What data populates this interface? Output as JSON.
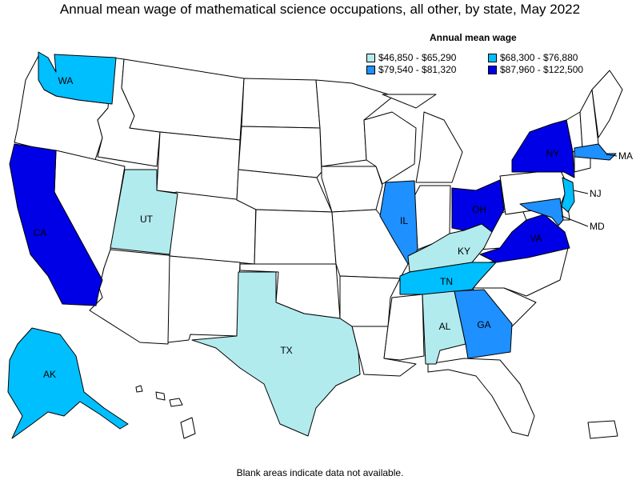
{
  "title": "Annual mean wage of mathematical science occupations, all other, by state, May 2022",
  "footnote": "Blank areas indicate data not available.",
  "legend": {
    "title": "Annual mean wage",
    "items": [
      {
        "label": "$46,850 - $65,290",
        "color": "#b2ebee"
      },
      {
        "label": "$68,300 - $76,880",
        "color": "#00bfff"
      },
      {
        "label": "$79,540 - $81,320",
        "color": "#1e90ff"
      },
      {
        "label": "$87,960 - $122,500",
        "color": "#0000e6"
      }
    ]
  },
  "colors": {
    "blank": "#ffffff"
  },
  "states": {
    "WA": {
      "label": "WA",
      "tier": 1
    },
    "CA": {
      "label": "CA",
      "tier": 3
    },
    "UT": {
      "label": "UT",
      "tier": 0
    },
    "TX": {
      "label": "TX",
      "tier": 0
    },
    "IL": {
      "label": "IL",
      "tier": 2
    },
    "OH": {
      "label": "OH",
      "tier": 3
    },
    "KY": {
      "label": "KY",
      "tier": 0
    },
    "TN": {
      "label": "TN",
      "tier": 1
    },
    "AL": {
      "label": "AL",
      "tier": 0
    },
    "GA": {
      "label": "GA",
      "tier": 2
    },
    "VA": {
      "label": "VA",
      "tier": 3
    },
    "NY": {
      "label": "NY",
      "tier": 3
    },
    "MA": {
      "label": "MA",
      "tier": 2
    },
    "NJ": {
      "label": "NJ",
      "tier": 1
    },
    "MD": {
      "label": "MD",
      "tier": 2
    },
    "AK": {
      "label": "AK",
      "tier": 1
    }
  }
}
